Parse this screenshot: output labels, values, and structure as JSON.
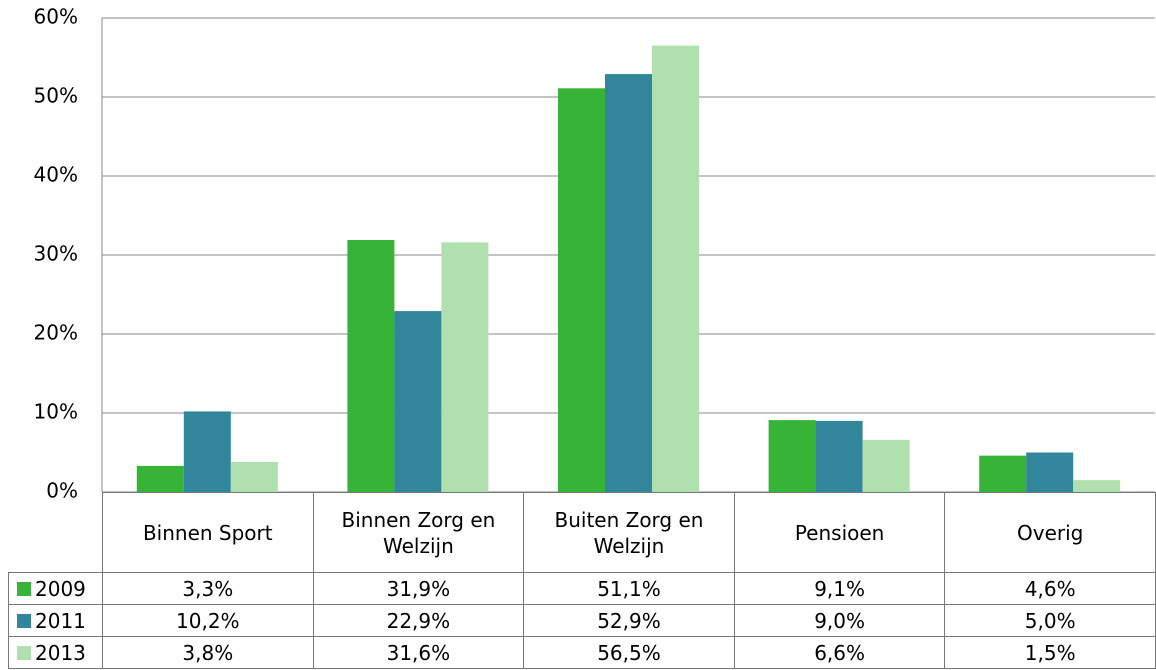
{
  "chart_data": {
    "type": "bar",
    "categories": [
      "Binnen Sport",
      "Binnen Zorg en Welzijn",
      "Buiten Zorg en Welzijn",
      "Pensioen",
      "Overig"
    ],
    "series": [
      {
        "name": "2009",
        "color": "#37b337",
        "values": [
          3.3,
          31.9,
          51.1,
          9.1,
          4.6
        ],
        "value_labels": [
          "3,3%",
          "31,9%",
          "51,1%",
          "9,1%",
          "4,6%"
        ]
      },
      {
        "name": "2011",
        "color": "#31869b",
        "values": [
          10.2,
          22.9,
          52.9,
          9.0,
          5.0
        ],
        "value_labels": [
          "10,2%",
          "22,9%",
          "52,9%",
          "9,0%",
          "5,0%"
        ]
      },
      {
        "name": "2013",
        "color": "#b0e0ae",
        "values": [
          3.8,
          31.6,
          56.5,
          6.6,
          1.5
        ],
        "value_labels": [
          "3,8%",
          "31,6%",
          "56,5%",
          "6,6%",
          "1,5%"
        ]
      }
    ],
    "ylim": [
      0,
      60
    ],
    "yticks": [
      {
        "value": 0,
        "label": "0%"
      },
      {
        "value": 10,
        "label": "10%"
      },
      {
        "value": 20,
        "label": "20%"
      },
      {
        "value": 30,
        "label": "30%"
      },
      {
        "value": 40,
        "label": "40%"
      },
      {
        "value": 50,
        "label": "50%"
      },
      {
        "value": 60,
        "label": "60%"
      }
    ],
    "grid": true
  }
}
